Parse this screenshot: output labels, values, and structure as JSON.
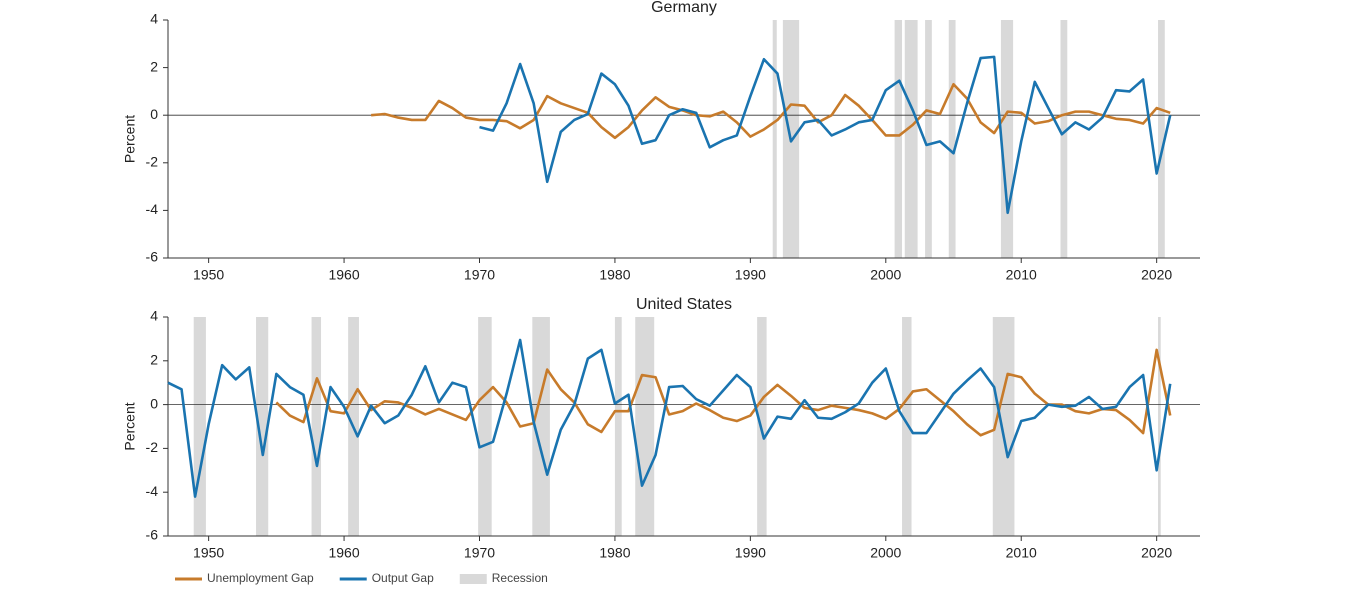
{
  "chart_data": [
    {
      "type": "line",
      "title": "Germany",
      "y_label": "Percent",
      "xlim": [
        1947,
        2023.2
      ],
      "ylim": [
        -6,
        4
      ],
      "xticks": [
        1950,
        1960,
        1970,
        1980,
        1990,
        2000,
        2010,
        2020
      ],
      "yticks": [
        -6,
        -4,
        -2,
        0,
        2,
        4
      ],
      "recession_color": "#d9d9d9",
      "recessions": [
        [
          1991.65,
          1991.95
        ],
        [
          1992.4,
          1993.6
        ],
        [
          2000.65,
          2001.2
        ],
        [
          2001.4,
          2002.35
        ],
        [
          2002.9,
          2003.4
        ],
        [
          2004.65,
          2005.15
        ],
        [
          2008.5,
          2009.4
        ],
        [
          2012.9,
          2013.4
        ],
        [
          2020.1,
          2020.6
        ]
      ],
      "x": [
        1962,
        1963,
        1964,
        1965,
        1966,
        1967,
        1968,
        1969,
        1970,
        1971,
        1972,
        1973,
        1974,
        1975,
        1976,
        1977,
        1978,
        1979,
        1980,
        1981,
        1982,
        1983,
        1984,
        1985,
        1986,
        1987,
        1988,
        1989,
        1990,
        1991,
        1992,
        1993,
        1994,
        1995,
        1996,
        1997,
        1998,
        1999,
        2000,
        2001,
        2002,
        2003,
        2004,
        2005,
        2006,
        2007,
        2008,
        2009,
        2010,
        2011,
        2012,
        2013,
        2014,
        2015,
        2016,
        2017,
        2018,
        2019,
        2020,
        2021
      ],
      "series": [
        {
          "color": "#c77b2b",
          "values": [
            0.0,
            0.05,
            -0.1,
            -0.2,
            -0.2,
            0.6,
            0.3,
            -0.1,
            -0.2,
            -0.2,
            -0.25,
            -0.55,
            -0.2,
            0.8,
            0.5,
            0.3,
            0.1,
            -0.5,
            -0.95,
            -0.5,
            0.2,
            0.75,
            0.35,
            0.2,
            0.0,
            -0.05,
            0.15,
            -0.3,
            -0.9,
            -0.6,
            -0.2,
            0.45,
            0.4,
            -0.3,
            0.0,
            0.85,
            0.4,
            -0.2,
            -0.85,
            -0.85,
            -0.4,
            0.2,
            0.05,
            1.3,
            0.7,
            -0.3,
            -0.75,
            0.15,
            0.1,
            -0.35,
            -0.25,
            0.0,
            0.15,
            0.15,
            0.0,
            -0.15,
            -0.2,
            -0.35,
            0.3,
            0.1
          ]
        },
        {
          "color": "#1a74b0",
          "values": [
            null,
            null,
            null,
            null,
            null,
            null,
            null,
            null,
            -0.5,
            -0.65,
            0.5,
            2.15,
            0.5,
            -2.8,
            -0.7,
            -0.2,
            0.05,
            1.75,
            1.3,
            0.4,
            -1.2,
            -1.05,
            0.0,
            0.25,
            0.1,
            -1.35,
            -1.05,
            -0.85,
            0.8,
            2.35,
            1.75,
            -1.1,
            -0.3,
            -0.2,
            -0.85,
            -0.6,
            -0.3,
            -0.2,
            1.05,
            1.45,
            0.2,
            -1.25,
            -1.1,
            -1.6,
            0.5,
            2.4,
            2.45,
            -4.1,
            -1.1,
            1.4,
            0.3,
            -0.8,
            -0.3,
            -0.6,
            -0.1,
            1.05,
            1.0,
            1.5,
            -2.45,
            0.0
          ]
        }
      ]
    },
    {
      "type": "line",
      "title": "United States",
      "y_label": "Percent",
      "xlim": [
        1947,
        2023.2
      ],
      "ylim": [
        -6,
        4
      ],
      "xticks": [
        1950,
        1960,
        1970,
        1980,
        1990,
        2000,
        2010,
        2020
      ],
      "yticks": [
        -6,
        -4,
        -2,
        0,
        2,
        4
      ],
      "recession_color": "#d9d9d9",
      "recession_name": "Recession",
      "recessions": [
        [
          1948.9,
          1949.8
        ],
        [
          1953.5,
          1954.4
        ],
        [
          1957.6,
          1958.3
        ],
        [
          1960.3,
          1961.1
        ],
        [
          1969.9,
          1970.9
        ],
        [
          1973.9,
          1975.2
        ],
        [
          1980.0,
          1980.5
        ],
        [
          1981.5,
          1982.9
        ],
        [
          1990.5,
          1991.2
        ],
        [
          2001.2,
          2001.9
        ],
        [
          2007.9,
          2009.5
        ],
        [
          2020.1,
          2020.3
        ]
      ],
      "x": [
        1947,
        1948,
        1949,
        1950,
        1951,
        1952,
        1953,
        1954,
        1955,
        1956,
        1957,
        1958,
        1959,
        1960,
        1961,
        1962,
        1963,
        1964,
        1965,
        1966,
        1967,
        1968,
        1969,
        1970,
        1971,
        1972,
        1973,
        1974,
        1975,
        1976,
        1977,
        1978,
        1979,
        1980,
        1981,
        1982,
        1983,
        1984,
        1985,
        1986,
        1987,
        1988,
        1989,
        1990,
        1991,
        1992,
        1993,
        1994,
        1995,
        1996,
        1997,
        1998,
        1999,
        2000,
        2001,
        2002,
        2003,
        2004,
        2005,
        2006,
        2007,
        2008,
        2009,
        2010,
        2011,
        2012,
        2013,
        2014,
        2015,
        2016,
        2017,
        2018,
        2019,
        2020,
        2021
      ],
      "series": [
        {
          "name": "Unemployment Gap",
          "color": "#c77b2b",
          "values": [
            null,
            null,
            null,
            null,
            null,
            null,
            null,
            null,
            0.1,
            -0.5,
            -0.8,
            1.2,
            -0.3,
            -0.4,
            0.7,
            -0.25,
            0.15,
            0.1,
            -0.15,
            -0.45,
            -0.2,
            -0.45,
            -0.7,
            0.2,
            0.8,
            0.1,
            -1.0,
            -0.85,
            1.6,
            0.7,
            0.1,
            -0.9,
            -1.25,
            -0.3,
            -0.3,
            1.35,
            1.25,
            -0.45,
            -0.3,
            0.05,
            -0.25,
            -0.6,
            -0.75,
            -0.5,
            0.35,
            0.9,
            0.4,
            -0.15,
            -0.25,
            -0.05,
            -0.15,
            -0.25,
            -0.4,
            -0.65,
            -0.2,
            0.6,
            0.7,
            0.2,
            -0.3,
            -0.9,
            -1.4,
            -1.15,
            1.4,
            1.25,
            0.5,
            0.0,
            0.0,
            -0.3,
            -0.4,
            -0.2,
            -0.25,
            -0.7,
            -1.3,
            2.5,
            -0.5
          ]
        },
        {
          "name": "Output Gap",
          "color": "#1a74b0",
          "values": [
            1.0,
            0.7,
            -4.2,
            -0.9,
            1.8,
            1.15,
            1.7,
            -2.3,
            1.4,
            0.8,
            0.45,
            -2.8,
            0.8,
            -0.1,
            -1.45,
            -0.05,
            -0.85,
            -0.5,
            0.45,
            1.75,
            0.1,
            1.0,
            0.8,
            -1.95,
            -1.7,
            0.5,
            2.95,
            -0.8,
            -3.2,
            -1.15,
            0.0,
            2.1,
            2.5,
            0.05,
            0.45,
            -3.7,
            -2.3,
            0.8,
            0.85,
            0.25,
            -0.05,
            0.65,
            1.35,
            0.8,
            -1.55,
            -0.55,
            -0.65,
            0.2,
            -0.6,
            -0.65,
            -0.35,
            0.05,
            1.0,
            1.65,
            -0.3,
            -1.3,
            -1.3,
            -0.4,
            0.5,
            1.1,
            1.65,
            0.8,
            -2.4,
            -0.75,
            -0.6,
            0.0,
            -0.1,
            -0.05,
            0.35,
            -0.2,
            -0.1,
            0.8,
            1.35,
            -3.0,
            0.95
          ]
        }
      ]
    }
  ]
}
